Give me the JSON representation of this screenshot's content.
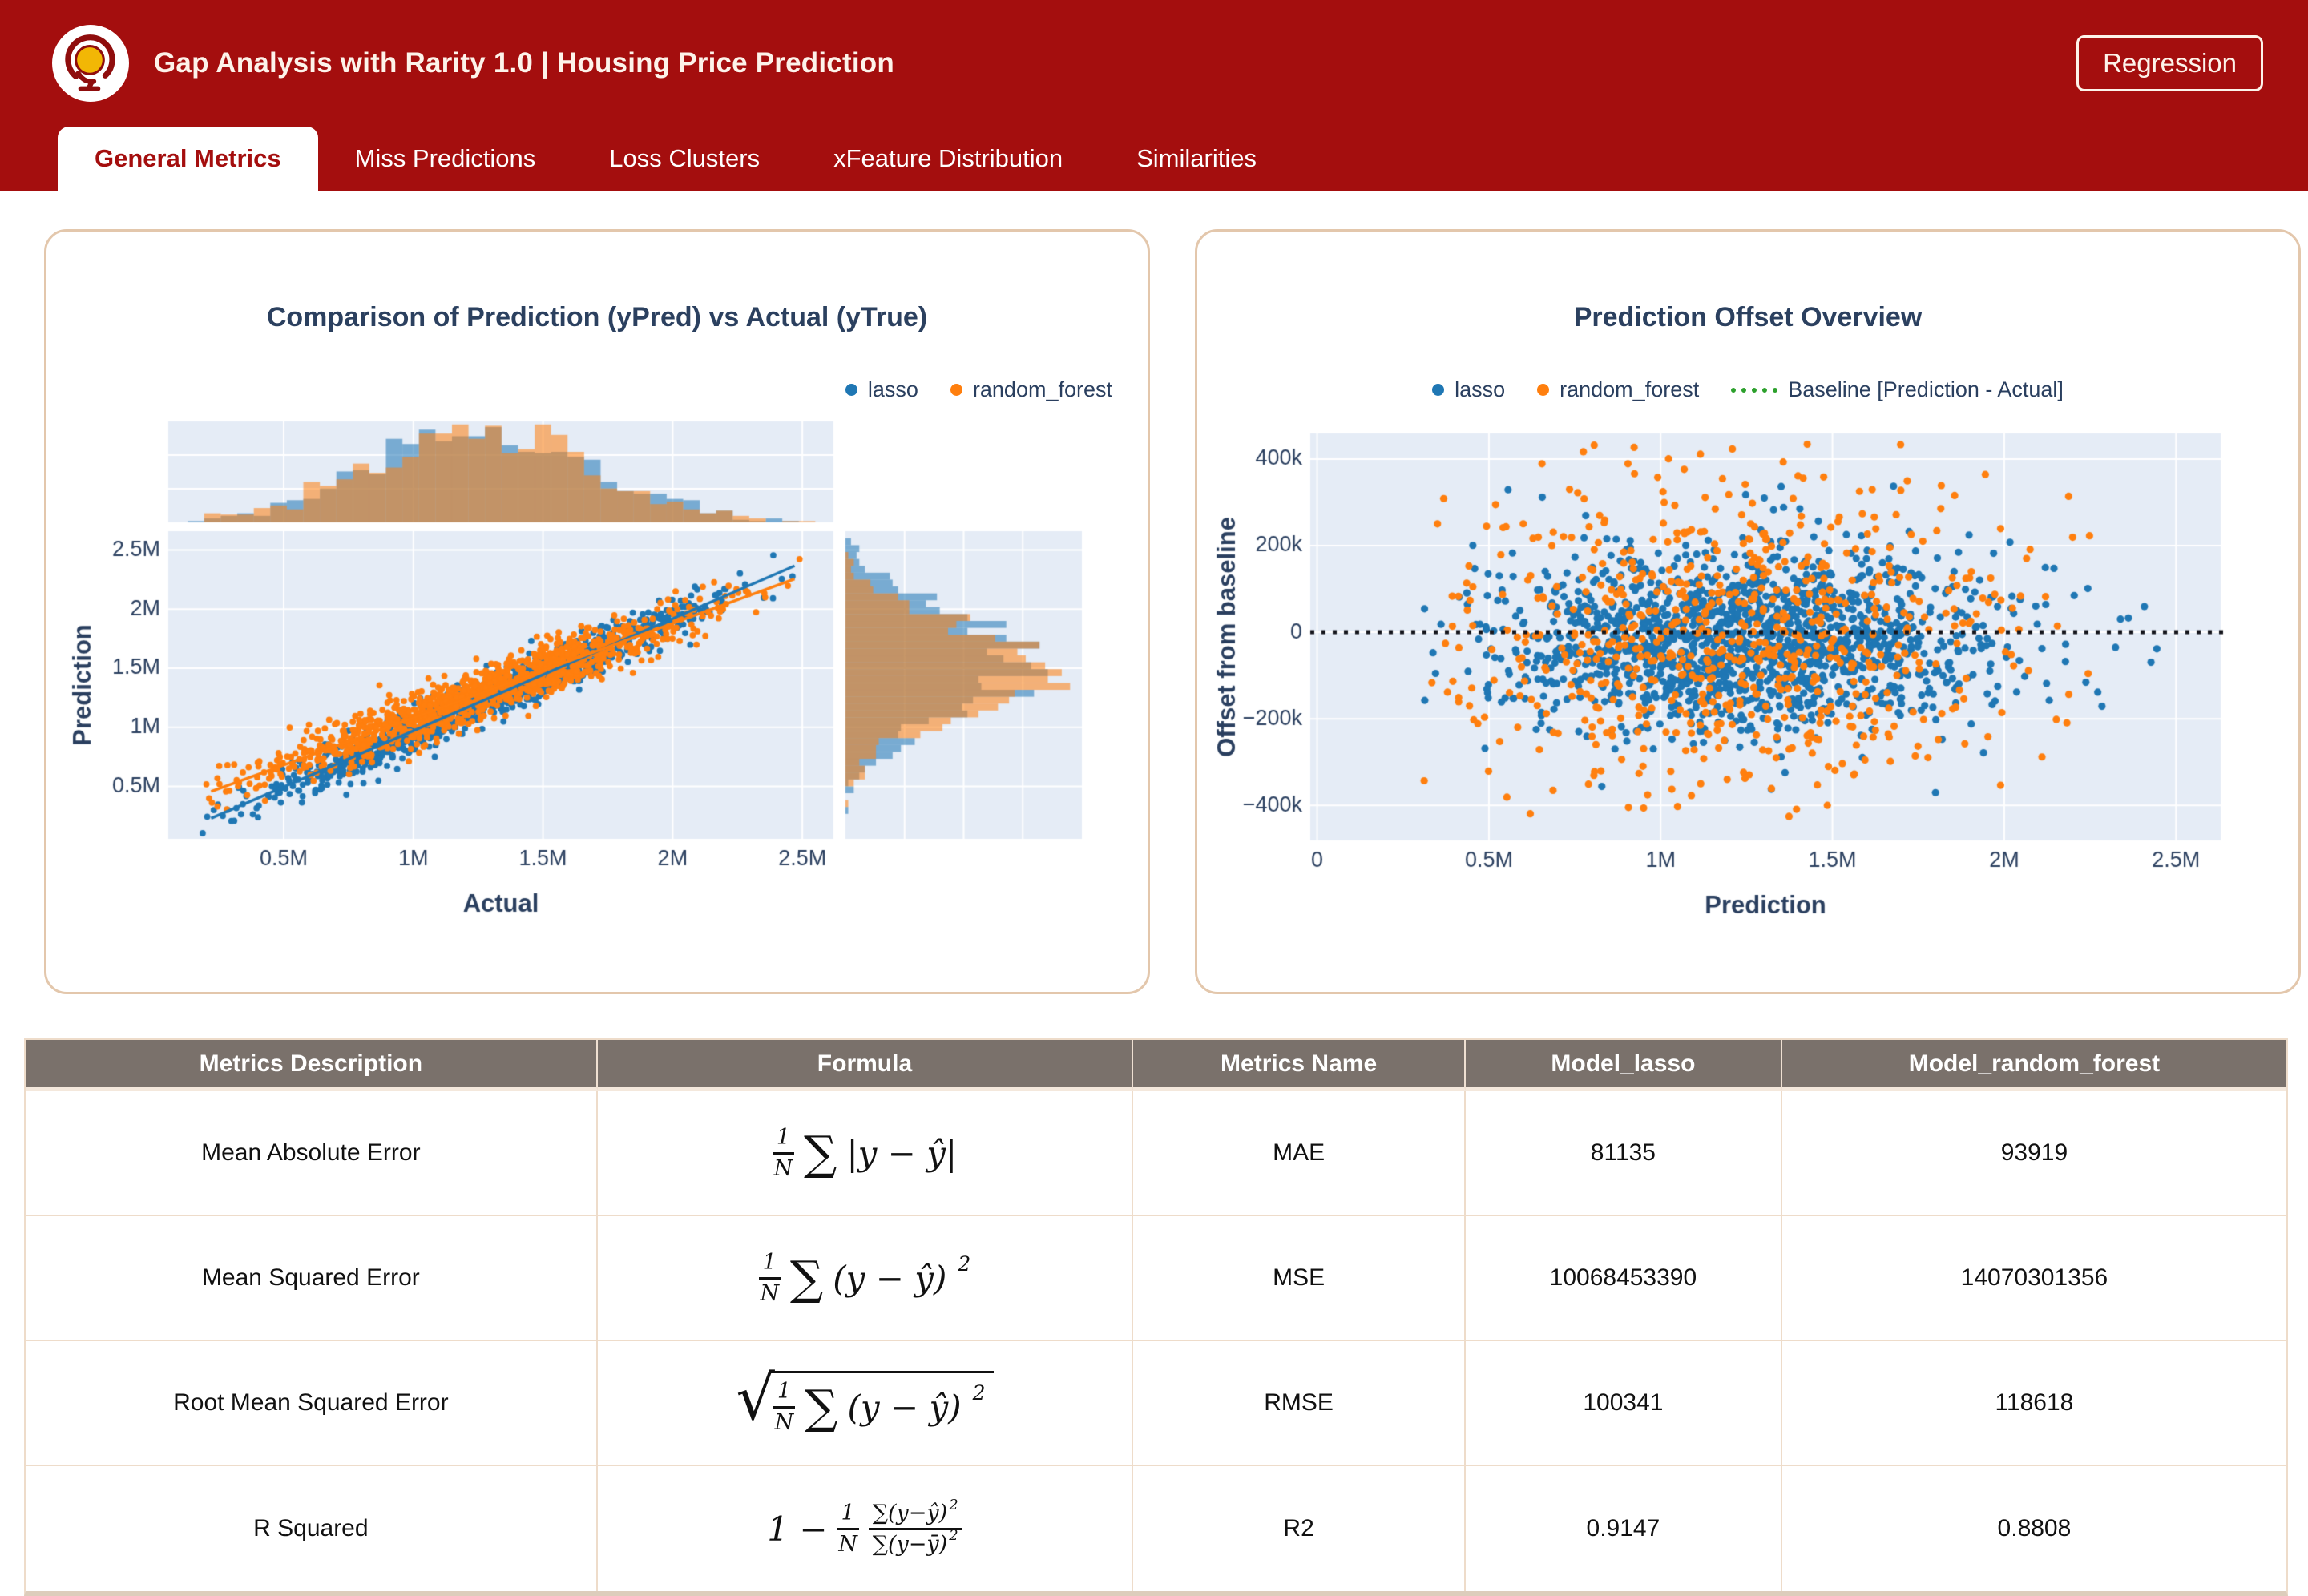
{
  "header": {
    "title": "Gap Analysis with Rarity 1.0  |  Housing Price Prediction",
    "button_label": "Regression",
    "logo": "globe-icon"
  },
  "tabs": [
    {
      "label": "General Metrics",
      "active": true
    },
    {
      "label": "Miss Predictions",
      "active": false
    },
    {
      "label": "Loss Clusters",
      "active": false
    },
    {
      "label": "xFeature Distribution",
      "active": false
    },
    {
      "label": "Similarities",
      "active": false
    }
  ],
  "colors": {
    "accent_red": "#a40e0e",
    "card_border": "#e3c7ac",
    "plot_bg": "#e5ecf6",
    "grid": "#ffffff",
    "axis_text": "#2a3f5f",
    "blue": "#1f77b4",
    "orange": "#ff7f0e",
    "green": "#2ca02c",
    "baseline_line": "#16161d",
    "table_header_bg": "#7a716b",
    "table_border": "#eedcca"
  },
  "chart_data": [
    {
      "id": "pred_vs_actual",
      "type": "scatter",
      "variant": "joint-with-marginal-histograms",
      "title": "Comparison of Prediction (yPred) vs Actual (yTrue)",
      "xlabel": "Actual",
      "ylabel": "Prediction",
      "xlim": [
        55000,
        2620000
      ],
      "ylim": [
        55000,
        2660000
      ],
      "x_ticks": {
        "values": [
          500000,
          1000000,
          1500000,
          2000000,
          2500000
        ],
        "labels": [
          "0.5M",
          "1M",
          "1.5M",
          "2M",
          "2.5M"
        ]
      },
      "y_ticks": {
        "values": [
          500000,
          1000000,
          1500000,
          2000000,
          2500000
        ],
        "labels": [
          "0.5M",
          "1M",
          "1.5M",
          "2M",
          "2.5M"
        ]
      },
      "grid": true,
      "legend": {
        "position": "top-right",
        "entries": [
          {
            "label": "lasso",
            "color": "#1f77b4",
            "marker": "dot"
          },
          {
            "label": "random_forest",
            "color": "#ff7f0e",
            "marker": "dot"
          }
        ]
      },
      "series": [
        {
          "name": "lasso",
          "color": "#1f77b4",
          "n": 1150,
          "x_dist": {
            "mean": 1250000,
            "sd": 420000,
            "min": 180000,
            "max": 2500000
          },
          "relation": {
            "slope": 0.95,
            "intercept": 20000,
            "noise_sd": 95000
          },
          "fit_line": {
            "slope": 0.95,
            "intercept": 20000,
            "x_range": [
              220000,
              2470000
            ]
          }
        },
        {
          "name": "random_forest",
          "color": "#ff7f0e",
          "n": 1150,
          "x_dist": {
            "mean": 1250000,
            "sd": 420000,
            "min": 180000,
            "max": 2500000
          },
          "relation": {
            "slope": 0.8,
            "intercept": 280000,
            "noise_sd": 112000
          },
          "fit_line": {
            "slope": 0.8,
            "intercept": 280000,
            "x_range": [
              220000,
              2470000
            ]
          }
        }
      ],
      "marginals": {
        "top_bins": 38,
        "right_bins": 42,
        "opacity": 0.55,
        "overlap_color_note": "tan"
      },
      "seed": 42
    },
    {
      "id": "prediction_offset",
      "type": "scatter",
      "title": "Prediction Offset Overview",
      "xlabel": "Prediction",
      "ylabel": "Offset from baseline",
      "xlim": [
        -20000,
        2630000
      ],
      "ylim": [
        -481000,
        459000
      ],
      "x_ticks": {
        "values": [
          0,
          500000,
          1000000,
          1500000,
          2000000,
          2500000
        ],
        "labels": [
          "0",
          "0.5M",
          "1M",
          "1.5M",
          "2M",
          "2.5M"
        ]
      },
      "y_ticks": {
        "values": [
          400000,
          200000,
          0,
          -200000,
          -400000
        ],
        "labels": [
          "400k",
          "200k",
          "0",
          "−200k",
          "−400k"
        ]
      },
      "grid": true,
      "baseline": {
        "y": 0,
        "style": "dotted",
        "line_color": "#16161d",
        "label": "Baseline [Prediction - Actual]",
        "legend_color": "#2ca02c"
      },
      "legend": {
        "position": "top-center",
        "entries": [
          {
            "label": "lasso",
            "color": "#1f77b4",
            "marker": "dot"
          },
          {
            "label": "random_forest",
            "color": "#ff7f0e",
            "marker": "dot"
          },
          {
            "label": "Baseline [Prediction - Actual]",
            "color": "#2ca02c",
            "marker": "dashes"
          }
        ]
      },
      "series": [
        {
          "name": "lasso",
          "color": "#1f77b4",
          "n": 1500,
          "x_dist": {
            "mean": 1250000,
            "sd": 360000,
            "min": 260000,
            "max": 2480000
          },
          "y_dist": {
            "mean": -18000,
            "sd": 105000,
            "min": -420000,
            "max": 430000
          }
        },
        {
          "name": "random_forest",
          "color": "#ff7f0e",
          "n": 700,
          "x_dist": {
            "mean": 1200000,
            "sd": 420000,
            "min": 300000,
            "max": 2250000
          },
          "y_dist": {
            "mean": -10000,
            "sd": 185000,
            "min": -430000,
            "max": 435000
          }
        }
      ],
      "seed": 7
    }
  ],
  "table": {
    "headers": [
      "Metrics Description",
      "Formula",
      "Metrics Name",
      "Model_lasso",
      "Model_random_forest"
    ],
    "rows": [
      {
        "description": "Mean Absolute Error",
        "formula": [
          {
            "t": "frac",
            "num": [
              {
                "t": "txt",
                "v": "1"
              }
            ],
            "den": [
              {
                "t": "txt",
                "v": "N"
              }
            ]
          },
          {
            "t": "sum"
          },
          {
            "t": "txt",
            "v": "|y − ŷ|"
          }
        ],
        "name": "MAE",
        "lasso": "81135",
        "random_forest": "93919"
      },
      {
        "description": "Mean Squared Error",
        "formula": [
          {
            "t": "frac",
            "num": [
              {
                "t": "txt",
                "v": "1"
              }
            ],
            "den": [
              {
                "t": "txt",
                "v": "N"
              }
            ]
          },
          {
            "t": "sum"
          },
          {
            "t": "txt",
            "v": "(y − ŷ)"
          },
          {
            "t": "sup",
            "v": "2"
          }
        ],
        "name": "MSE",
        "lasso": "10068453390",
        "random_forest": "14070301356"
      },
      {
        "description": "Root Mean Squared Error",
        "formula": [
          {
            "t": "sqrt",
            "body": [
              {
                "t": "frac",
                "num": [
                  {
                    "t": "txt",
                    "v": "1"
                  }
                ],
                "den": [
                  {
                    "t": "txt",
                    "v": "N"
                  }
                ]
              },
              {
                "t": "sum"
              },
              {
                "t": "txt",
                "v": "(y − ŷ)"
              },
              {
                "t": "sup",
                "v": "2"
              }
            ]
          }
        ],
        "name": "RMSE",
        "lasso": "100341",
        "random_forest": "118618"
      },
      {
        "description": "R Squared",
        "formula": [
          {
            "t": "txt",
            "v": "1 −"
          },
          {
            "t": "frac",
            "num": [
              {
                "t": "txt",
                "v": "1"
              }
            ],
            "den": [
              {
                "t": "txt",
                "v": "N"
              }
            ]
          },
          {
            "t": "frac",
            "num": [
              {
                "t": "txt",
                "v": "∑(y−ŷ)"
              },
              {
                "t": "sup",
                "v": "2"
              }
            ],
            "den": [
              {
                "t": "txt",
                "v": "∑(y−ȳ)"
              },
              {
                "t": "sup",
                "v": "2"
              }
            ]
          }
        ],
        "name": "R2",
        "lasso": "0.9147",
        "random_forest": "0.8808"
      }
    ]
  }
}
